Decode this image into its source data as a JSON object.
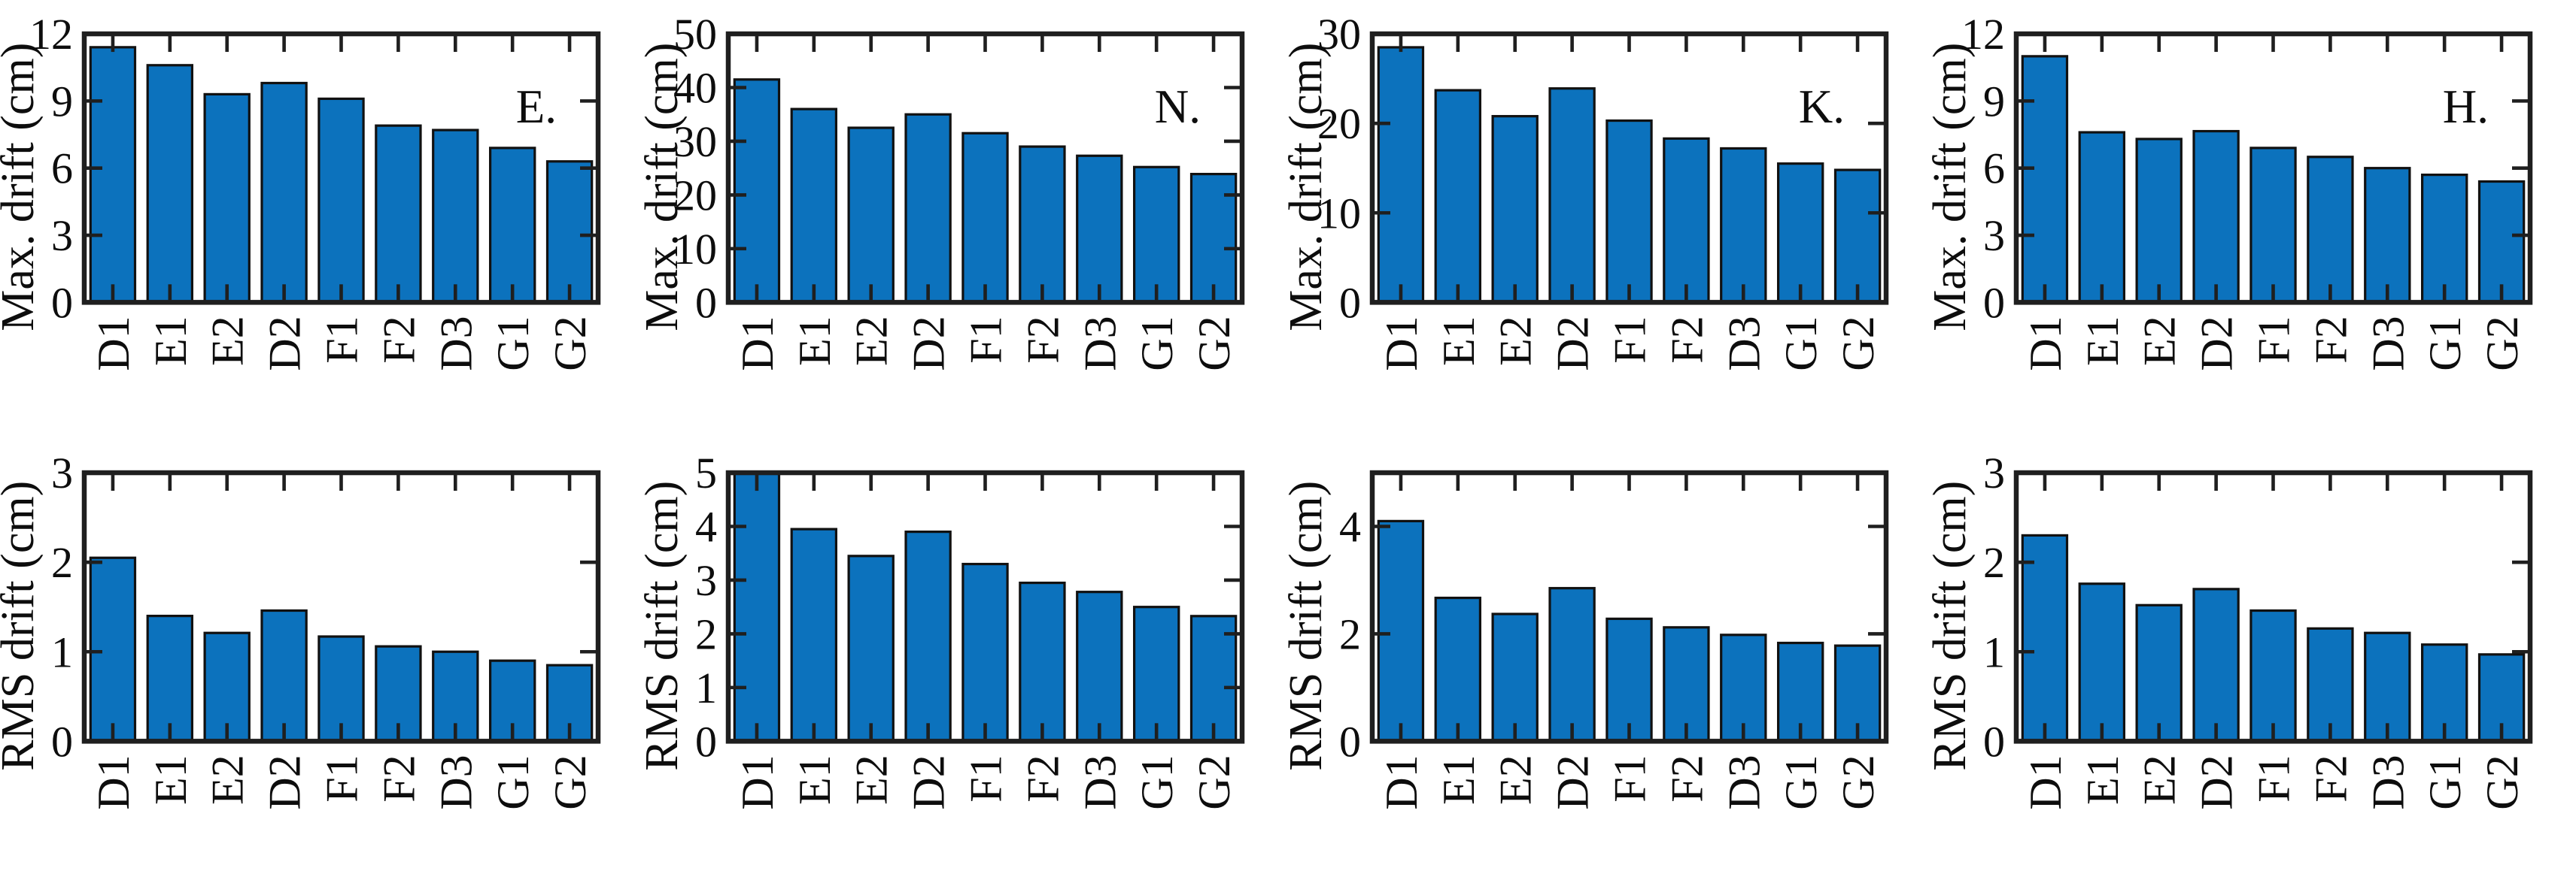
{
  "figure": {
    "background": "#ffffff",
    "bar_color": "#0C72BD",
    "bar_edge_color": "#111111",
    "axis_color": "#1f1f1f",
    "text_color": "#0d0d0d",
    "bar_width_ratio": 0.78
  },
  "chart_data": [
    {
      "type": "bar",
      "panel": "top-row-col-1",
      "annotation": "E.",
      "ylabel": "Max. drift (cm)",
      "xlabel": "",
      "title": "",
      "categories": [
        "D1",
        "E1",
        "E2",
        "D2",
        "F1",
        "F2",
        "D3",
        "G1",
        "G2"
      ],
      "values": [
        11.4,
        10.6,
        9.3,
        9.8,
        9.1,
        7.9,
        7.7,
        6.9,
        6.3
      ],
      "ylim": [
        0,
        12
      ],
      "yticks": [
        0,
        3,
        6,
        9,
        12
      ],
      "grid": false,
      "legend": "none"
    },
    {
      "type": "bar",
      "panel": "top-row-col-2",
      "annotation": "N.",
      "ylabel": "Max. drift (cm)",
      "xlabel": "",
      "title": "",
      "categories": [
        "D1",
        "E1",
        "E2",
        "D2",
        "F1",
        "F2",
        "D3",
        "G1",
        "G2"
      ],
      "values": [
        41.5,
        36.0,
        32.5,
        35.0,
        31.5,
        29.0,
        27.3,
        25.2,
        23.9
      ],
      "ylim": [
        0,
        50
      ],
      "yticks": [
        0,
        10,
        20,
        30,
        40,
        50
      ],
      "grid": false,
      "legend": "none"
    },
    {
      "type": "bar",
      "panel": "top-row-col-3",
      "annotation": "K.",
      "ylabel": "Max. drift (cm)",
      "xlabel": "",
      "title": "",
      "categories": [
        "D1",
        "E1",
        "E2",
        "D2",
        "F1",
        "F2",
        "D3",
        "G1",
        "G2"
      ],
      "values": [
        28.5,
        23.7,
        20.8,
        23.9,
        20.3,
        18.3,
        17.2,
        15.5,
        14.8
      ],
      "ylim": [
        0,
        30
      ],
      "yticks": [
        0,
        10,
        20,
        30
      ],
      "grid": false,
      "legend": "none"
    },
    {
      "type": "bar",
      "panel": "top-row-col-4",
      "annotation": "H.",
      "ylabel": "Max. drift (cm)",
      "xlabel": "",
      "title": "",
      "categories": [
        "D1",
        "E1",
        "E2",
        "D2",
        "F1",
        "F2",
        "D3",
        "G1",
        "G2"
      ],
      "values": [
        11.0,
        7.6,
        7.3,
        7.65,
        6.9,
        6.5,
        6.0,
        5.7,
        5.4
      ],
      "ylim": [
        0,
        12
      ],
      "yticks": [
        0,
        3,
        6,
        9,
        12
      ],
      "grid": false,
      "legend": "none"
    },
    {
      "type": "bar",
      "panel": "bottom-row-col-1",
      "annotation": "",
      "ylabel": "RMS drift (cm)",
      "xlabel": "",
      "title": "",
      "categories": [
        "D1",
        "E1",
        "E2",
        "D2",
        "F1",
        "F2",
        "D3",
        "G1",
        "G2"
      ],
      "values": [
        2.05,
        1.4,
        1.21,
        1.46,
        1.17,
        1.06,
        1.0,
        0.9,
        0.85
      ],
      "ylim": [
        0,
        3
      ],
      "yticks": [
        0,
        1,
        2,
        3
      ],
      "grid": false,
      "legend": "none"
    },
    {
      "type": "bar",
      "panel": "bottom-row-col-2",
      "annotation": "",
      "ylabel": "RMS drift (cm)",
      "xlabel": "",
      "title": "",
      "categories": [
        "D1",
        "E1",
        "E2",
        "D2",
        "F1",
        "F2",
        "D3",
        "G1",
        "G2"
      ],
      "values": [
        5.0,
        3.95,
        3.45,
        3.9,
        3.3,
        2.95,
        2.78,
        2.5,
        2.33
      ],
      "ylim": [
        0,
        5
      ],
      "yticks": [
        0,
        1,
        2,
        3,
        4,
        5
      ],
      "grid": false,
      "legend": "none"
    },
    {
      "type": "bar",
      "panel": "bottom-row-col-3",
      "annotation": "",
      "ylabel": "RMS drift (cm)",
      "xlabel": "",
      "title": "",
      "categories": [
        "D1",
        "E1",
        "E2",
        "D2",
        "F1",
        "F2",
        "D3",
        "G1",
        "G2"
      ],
      "values": [
        4.1,
        2.67,
        2.37,
        2.85,
        2.28,
        2.12,
        1.98,
        1.83,
        1.78
      ],
      "ylim": [
        0,
        5
      ],
      "yticks": [
        0,
        2,
        4
      ],
      "grid": false,
      "legend": "none"
    },
    {
      "type": "bar",
      "panel": "bottom-row-col-4",
      "annotation": "",
      "ylabel": "RMS drift (cm)",
      "xlabel": "",
      "title": "",
      "categories": [
        "D1",
        "E1",
        "E2",
        "D2",
        "F1",
        "F2",
        "D3",
        "G1",
        "G2"
      ],
      "values": [
        2.3,
        1.76,
        1.52,
        1.7,
        1.46,
        1.26,
        1.21,
        1.08,
        0.97
      ],
      "ylim": [
        0,
        3
      ],
      "yticks": [
        0,
        1,
        2,
        3
      ],
      "grid": false,
      "legend": "none"
    }
  ]
}
